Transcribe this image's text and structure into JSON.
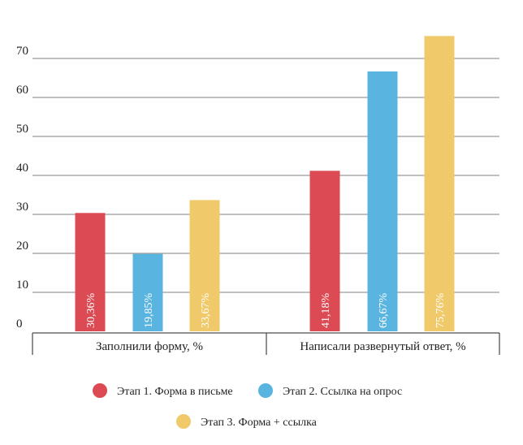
{
  "chart_data": {
    "type": "bar",
    "categories": [
      "Заполнили форму, %",
      "Написали развернутый ответ, %"
    ],
    "series": [
      {
        "name": "Этап 1. Форма в письме",
        "values": [
          30.36,
          41.18
        ],
        "labels": [
          "30,36%",
          "41,18%"
        ],
        "color": "#dc4b53"
      },
      {
        "name": "Этап 2. Ссылка на опрос",
        "values": [
          19.85,
          66.67
        ],
        "labels": [
          "19,85%",
          "66,67%"
        ],
        "color": "#5ab4e0"
      },
      {
        "name": "Этап 3. Форма + ссылка",
        "values": [
          33.67,
          75.76
        ],
        "labels": [
          "33,67%",
          "75,76%"
        ],
        "color": "#f0c96a"
      }
    ],
    "yticks": [
      "0",
      "10",
      "20",
      "30",
      "40",
      "50",
      "60",
      "70"
    ],
    "ylim": [
      0,
      80
    ],
    "grid": true,
    "legend": "bottom"
  }
}
